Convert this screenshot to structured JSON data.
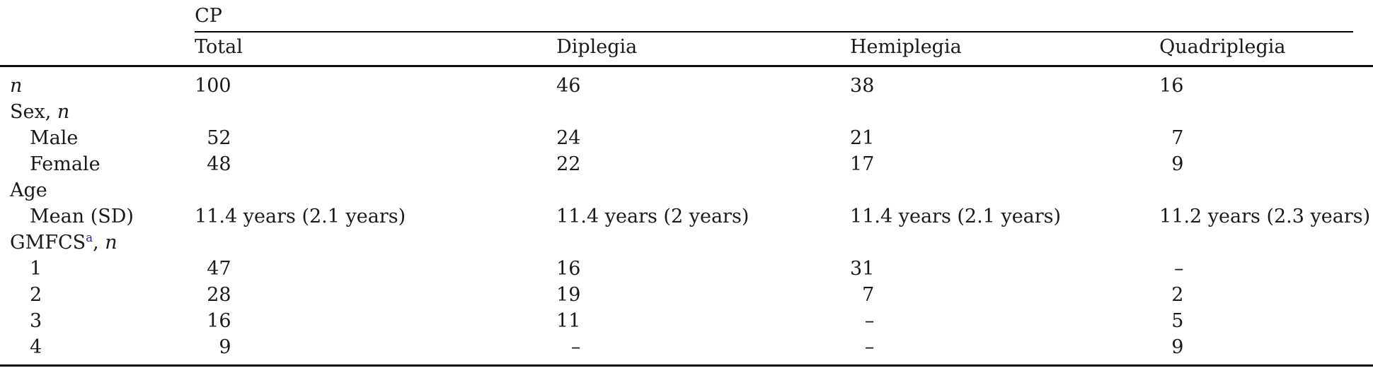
{
  "page": {
    "background": "#ffffff",
    "text_color": "#1a1a1a",
    "rule_color": "#000000",
    "footnote_link_color": "#2b2ba0"
  },
  "table": {
    "group_header": "CP",
    "columns": [
      "Total",
      "Diplegia",
      "Hemiplegia",
      "Quadriplegia"
    ],
    "num_box_ch": [
      3,
      2,
      2,
      2
    ],
    "rows": [
      {
        "label": [
          {
            "t": "n",
            "i": true
          }
        ],
        "indent": false,
        "values": [
          "100",
          "46",
          "38",
          "16"
        ]
      },
      {
        "label": [
          {
            "t": "Sex, "
          },
          {
            "t": "n",
            "i": true
          }
        ],
        "indent": false,
        "values": [
          "",
          "",
          "",
          ""
        ]
      },
      {
        "label": [
          {
            "t": "Male"
          }
        ],
        "indent": true,
        "values": [
          "52",
          "24",
          "21",
          "7"
        ]
      },
      {
        "label": [
          {
            "t": "Female"
          }
        ],
        "indent": true,
        "values": [
          "48",
          "22",
          "17",
          "9"
        ]
      },
      {
        "label": [
          {
            "t": "Age"
          }
        ],
        "indent": false,
        "values": [
          "",
          "",
          "",
          ""
        ]
      },
      {
        "label": [
          {
            "t": "Mean (SD)"
          }
        ],
        "indent": true,
        "values": [
          "11.4 years (2.1 years)",
          "11.4 years (2 years)",
          "11.4 years (2.1 years)",
          "11.2 years (2.3 years)"
        ]
      },
      {
        "label": [
          {
            "t": "GMFCS"
          },
          {
            "t": "a",
            "sup": true
          },
          {
            "t": ", "
          },
          {
            "t": "n",
            "i": true
          }
        ],
        "indent": false,
        "values": [
          "",
          "",
          "",
          ""
        ]
      },
      {
        "label": [
          {
            "t": "1"
          }
        ],
        "indent": true,
        "values": [
          "47",
          "16",
          "31",
          "–"
        ]
      },
      {
        "label": [
          {
            "t": "2"
          }
        ],
        "indent": true,
        "values": [
          "28",
          "19",
          "7",
          "2"
        ]
      },
      {
        "label": [
          {
            "t": "3"
          }
        ],
        "indent": true,
        "values": [
          "16",
          "11",
          "–",
          "5"
        ]
      },
      {
        "label": [
          {
            "t": "4"
          }
        ],
        "indent": true,
        "values": [
          "9",
          "–",
          "–",
          "9"
        ]
      }
    ]
  }
}
